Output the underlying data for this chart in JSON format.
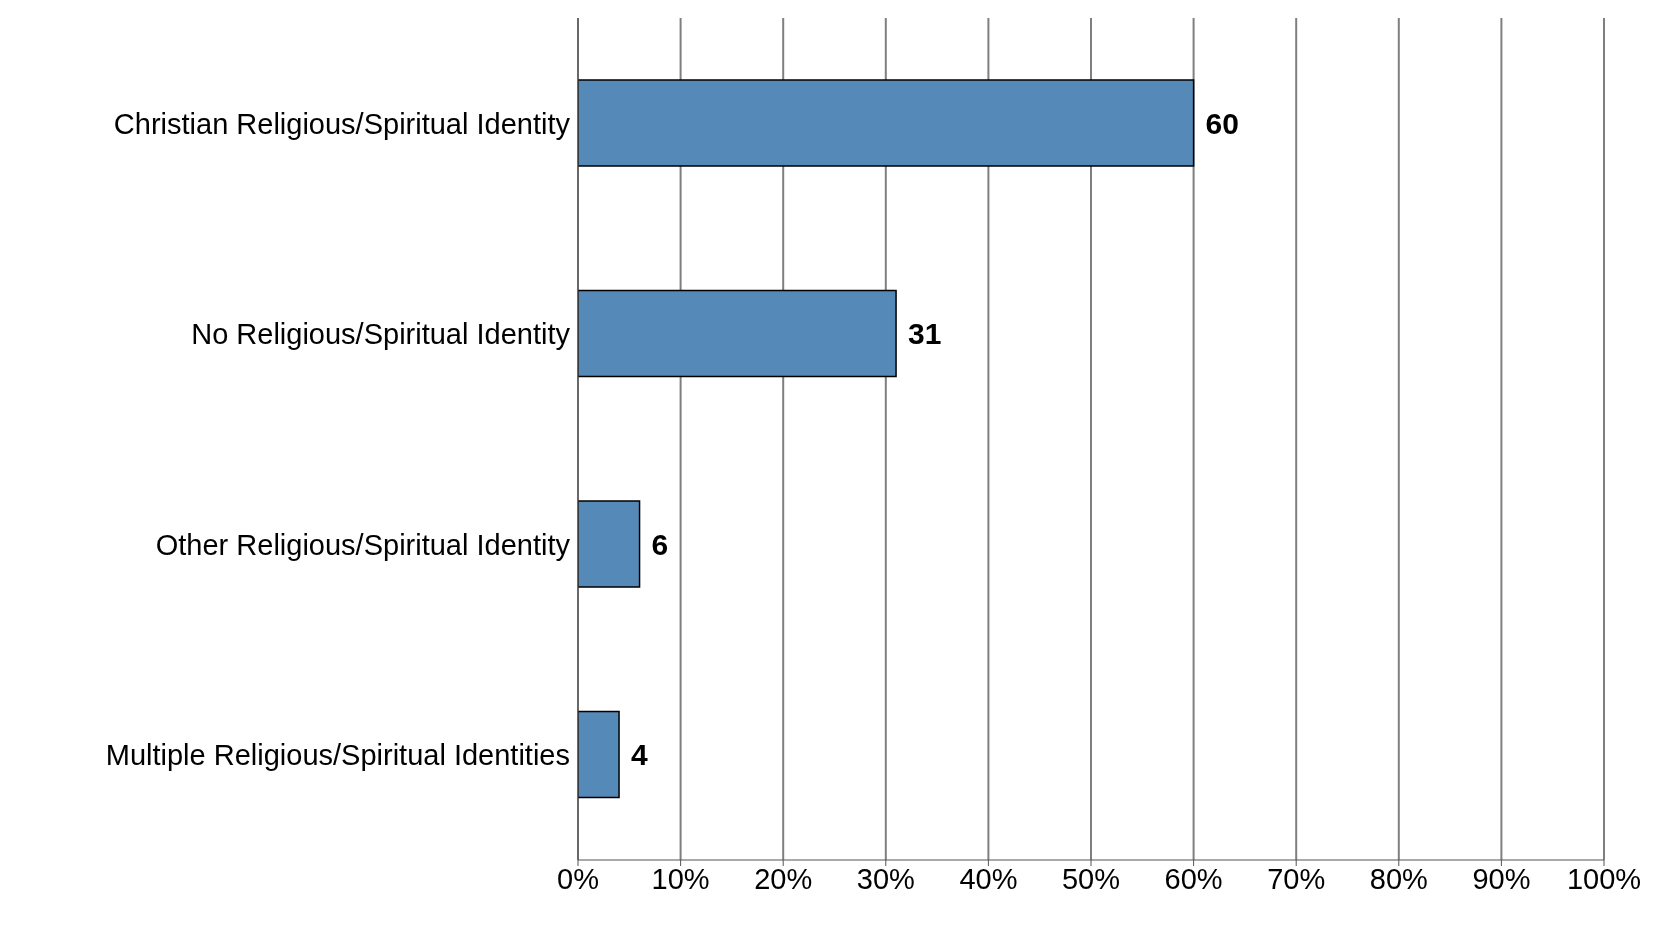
{
  "chart_data": {
    "type": "bar",
    "orientation": "horizontal",
    "categories": [
      "Christian Religious/Spiritual Identity",
      "No Religious/Spiritual Identity",
      "Other Religious/Spiritual Identity",
      "Multiple Religious/Spiritual Identities"
    ],
    "values": [
      60,
      31,
      6,
      4
    ],
    "color": "#5589b8",
    "xlim": [
      0,
      100
    ],
    "xticks": [
      {
        "value": 0,
        "label": "0%"
      },
      {
        "value": 10,
        "label": "10%"
      },
      {
        "value": 20,
        "label": "20%"
      },
      {
        "value": 30,
        "label": "30%"
      },
      {
        "value": 40,
        "label": "40%"
      },
      {
        "value": 50,
        "label": "50%"
      },
      {
        "value": 60,
        "label": "60%"
      },
      {
        "value": 70,
        "label": "70%"
      },
      {
        "value": 80,
        "label": "80%"
      },
      {
        "value": 90,
        "label": "90%"
      },
      {
        "value": 100,
        "label": "100%"
      }
    ],
    "grid": "x",
    "data_labels": true,
    "legend": false
  }
}
